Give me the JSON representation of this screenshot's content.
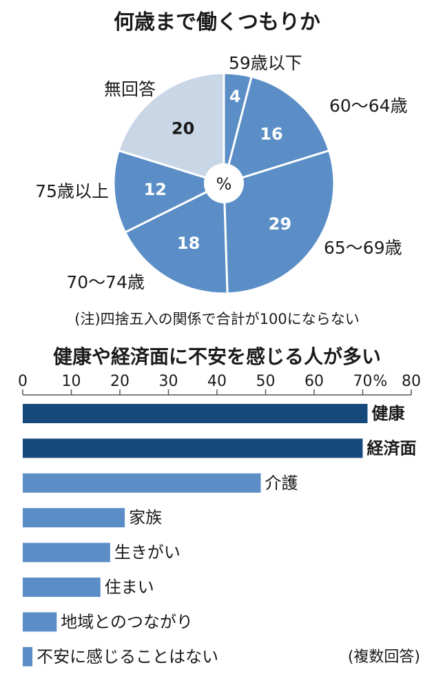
{
  "colors": {
    "accent_light": "#5b8ec6",
    "accent_dark": "#174a7c",
    "pale": "#c9d6e6",
    "background": "#ffffff",
    "axis": "#555555"
  },
  "chart_data": [
    {
      "type": "pie",
      "title": "何歳まで働くつもりか",
      "center_label": "%",
      "note": "(注)四捨五入の関係で合計が100にならない",
      "slices": [
        {
          "label": "59歳以下",
          "value": 4
        },
        {
          "label": "60～64歳",
          "value": 16
        },
        {
          "label": "65～69歳",
          "value": 29
        },
        {
          "label": "70～74歳",
          "value": 18
        },
        {
          "label": "75歳以上",
          "value": 12
        },
        {
          "label": "無回答",
          "value": 20
        }
      ]
    },
    {
      "type": "bar",
      "orientation": "horizontal",
      "title": "健康や経済面に不安を感じる人が多い",
      "unit": "%",
      "note": "(複数回答)",
      "xlim": [
        0,
        80
      ],
      "ticks": [
        0,
        10,
        20,
        30,
        40,
        50,
        60,
        70,
        80
      ],
      "categories": [
        "健康",
        "経済面",
        "介護",
        "家族",
        "生きがい",
        "住まい",
        "地域とのつながり",
        "不安に感じることはない"
      ],
      "values": [
        71,
        70,
        49,
        21,
        18,
        16,
        7,
        2
      ],
      "bold_categories": [
        "健康",
        "経済面"
      ]
    }
  ]
}
